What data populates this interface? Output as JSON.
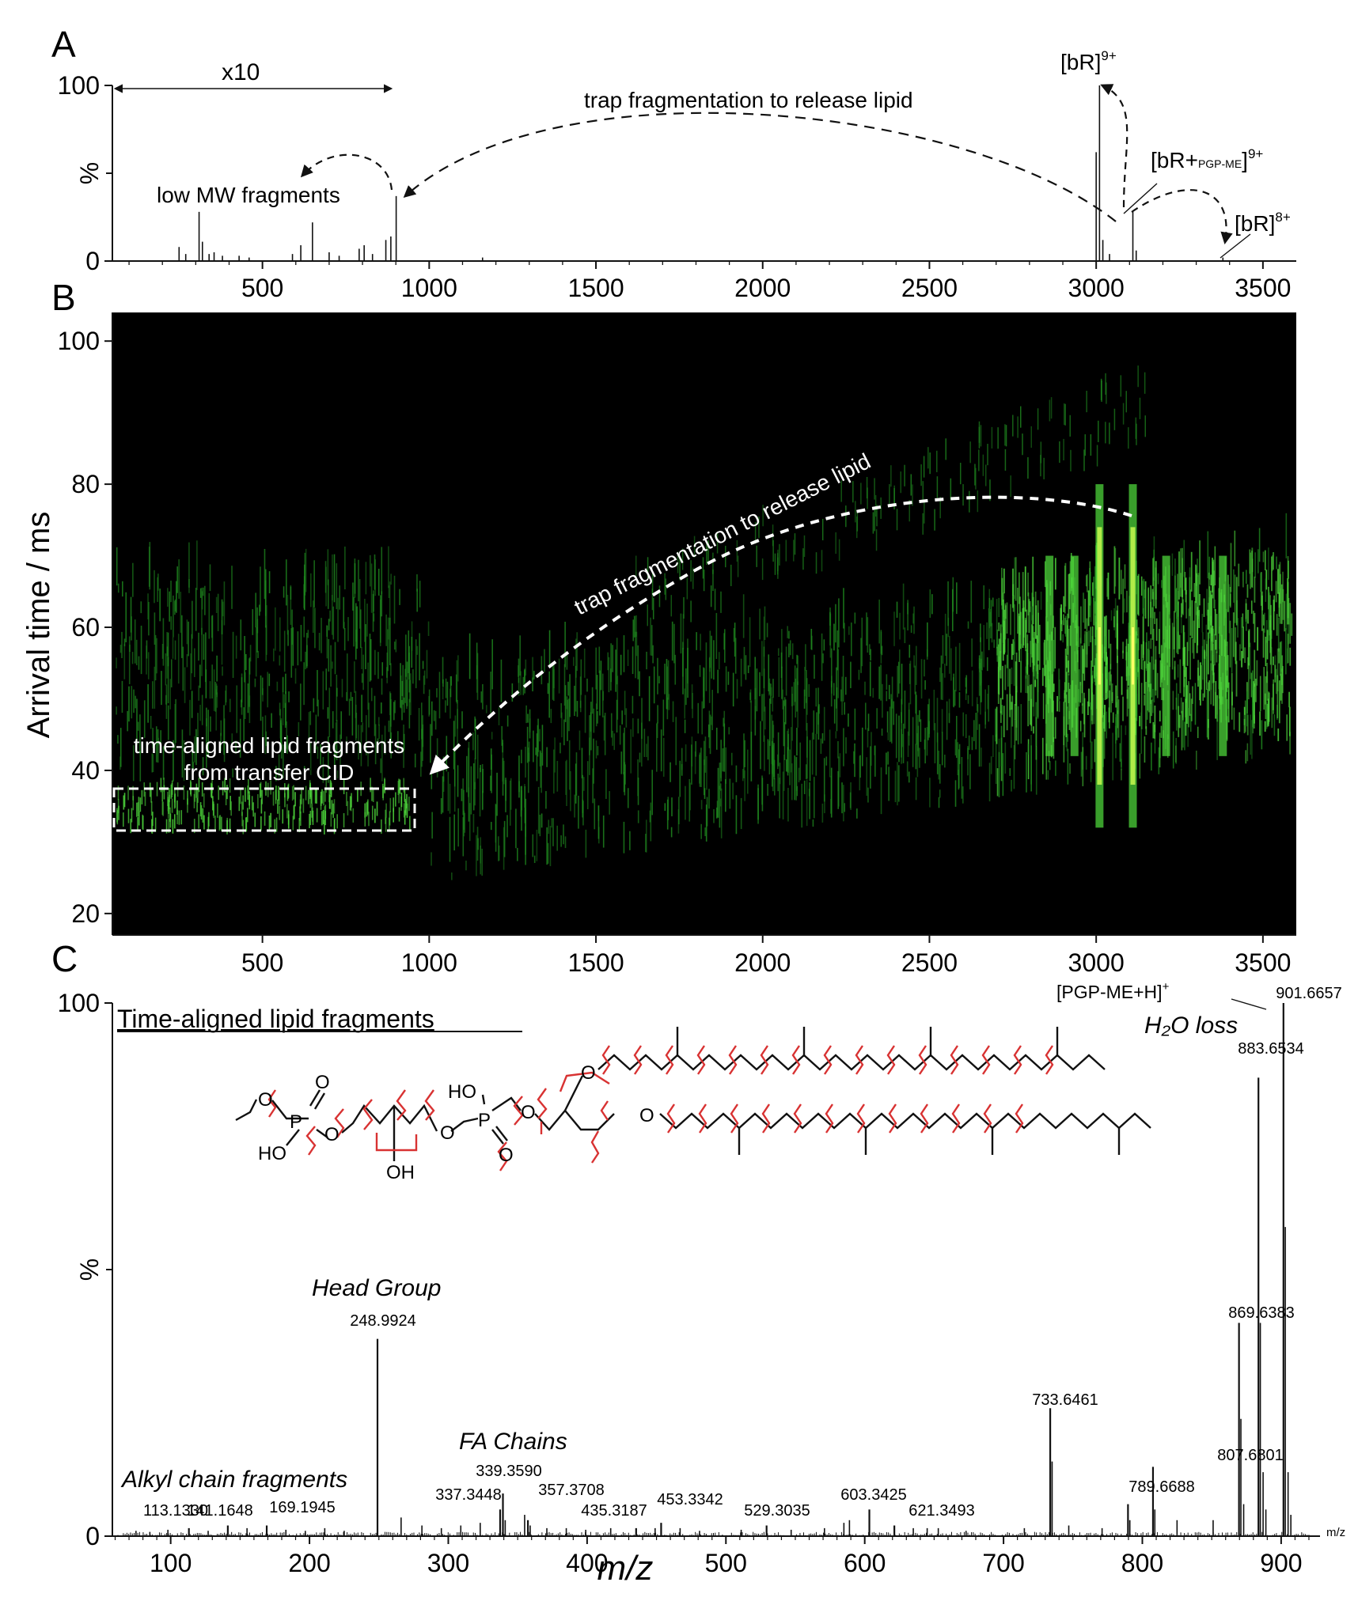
{
  "chart_data": [
    {
      "panel": "A",
      "type": "line",
      "x_ticks": [
        500,
        1000,
        1500,
        2000,
        2500,
        3000,
        3500
      ],
      "y_ticks": [
        0,
        100
      ],
      "y_mid_label": "%",
      "xlim": [
        50,
        3600
      ],
      "ylim": [
        0,
        100
      ],
      "zoom_label": "x10",
      "zoom_range": [
        50,
        900
      ],
      "peaks": [
        {
          "x": 250,
          "y": 8
        },
        {
          "x": 270,
          "y": 4
        },
        {
          "x": 310,
          "y": 28
        },
        {
          "x": 320,
          "y": 11
        },
        {
          "x": 340,
          "y": 4
        },
        {
          "x": 355,
          "y": 5
        },
        {
          "x": 380,
          "y": 3
        },
        {
          "x": 430,
          "y": 3
        },
        {
          "x": 460,
          "y": 2
        },
        {
          "x": 590,
          "y": 4
        },
        {
          "x": 615,
          "y": 9
        },
        {
          "x": 650,
          "y": 22
        },
        {
          "x": 700,
          "y": 5
        },
        {
          "x": 730,
          "y": 3
        },
        {
          "x": 790,
          "y": 7
        },
        {
          "x": 805,
          "y": 9
        },
        {
          "x": 830,
          "y": 4
        },
        {
          "x": 870,
          "y": 12
        },
        {
          "x": 885,
          "y": 14
        },
        {
          "x": 901,
          "y": 37
        },
        {
          "x": 1160,
          "y": 2
        },
        {
          "x": 3000,
          "y": 62
        },
        {
          "x": 3010,
          "y": 100
        },
        {
          "x": 3020,
          "y": 12
        },
        {
          "x": 3040,
          "y": 4
        },
        {
          "x": 3110,
          "y": 28
        },
        {
          "x": 3120,
          "y": 6
        },
        {
          "x": 3380,
          "y": 2
        }
      ],
      "annotations": {
        "trap": "trap fragmentation to release lipid",
        "low_mw": "low MW fragments",
        "bR9_base": "[bR]",
        "bR9_sup": "9+",
        "bRlipid_base": "[bR+",
        "bRlipid_sub": "PGP-ME",
        "bRlipid_close": "]",
        "bRlipid_sup": "9+",
        "bR8_base": "[bR]",
        "bR8_sup": "8+"
      }
    },
    {
      "panel": "B",
      "type": "heatmap",
      "x_ticks": [
        500,
        1000,
        1500,
        2000,
        2500,
        3000,
        3500
      ],
      "y_ticks": [
        20,
        40,
        60,
        80,
        100
      ],
      "xlim": [
        50,
        3600
      ],
      "ylim": [
        17,
        104
      ],
      "ylabel": "Arrival time / ms",
      "colors": [
        "#000000",
        "#1f8a1f",
        "#4cd33a",
        "#b7f04a",
        "#ffff66"
      ],
      "annotations": {
        "trap": "trap fragmentation to release lipid",
        "box_line1": "time-aligned lipid fragments",
        "box_line2": "from transfer CID"
      }
    },
    {
      "panel": "C",
      "type": "bar",
      "title": "Time-aligned lipid fragments",
      "xlabel": "m/z",
      "x_unit_label": "m/z",
      "y_mid_label": "%",
      "x_ticks": [
        100,
        200,
        300,
        400,
        500,
        600,
        700,
        800,
        900
      ],
      "y_ticks": [
        0,
        100
      ],
      "xlim": [
        58,
        928
      ],
      "ylim": [
        0,
        100
      ],
      "labeled_peaks": [
        {
          "x": 113.133,
          "y": 1.5,
          "label": "113.1330"
        },
        {
          "x": 141.1648,
          "y": 2,
          "label": "141.1648"
        },
        {
          "x": 169.1945,
          "y": 2,
          "label": "169.1945"
        },
        {
          "x": 248.9924,
          "y": 37,
          "label": "248.9924"
        },
        {
          "x": 337.3448,
          "y": 5,
          "label": "337.3448"
        },
        {
          "x": 339.359,
          "y": 8,
          "label": "339.3590"
        },
        {
          "x": 357.3708,
          "y": 3,
          "label": "357.3708"
        },
        {
          "x": 435.3187,
          "y": 1.5,
          "label": "435.3187"
        },
        {
          "x": 453.3342,
          "y": 2.5,
          "label": "453.3342"
        },
        {
          "x": 529.3035,
          "y": 2,
          "label": "529.3035"
        },
        {
          "x": 603.3425,
          "y": 5,
          "label": "603.3425"
        },
        {
          "x": 621.3493,
          "y": 2,
          "label": "621.3493"
        },
        {
          "x": 733.6461,
          "y": 24,
          "label": "733.6461"
        },
        {
          "x": 789.6688,
          "y": 6,
          "label": "789.6688"
        },
        {
          "x": 807.6801,
          "y": 13,
          "label": "807.6801"
        },
        {
          "x": 869.6383,
          "y": 40,
          "label": "869.6383"
        },
        {
          "x": 883.6534,
          "y": 86,
          "label": "883.6534"
        },
        {
          "x": 901.6657,
          "y": 100,
          "label": "901.6657"
        }
      ],
      "minor_peaks": [
        {
          "x": 75,
          "y": 1
        },
        {
          "x": 85,
          "y": 0.8
        },
        {
          "x": 98,
          "y": 1.2
        },
        {
          "x": 127,
          "y": 1
        },
        {
          "x": 155,
          "y": 1.5
        },
        {
          "x": 183,
          "y": 1.2
        },
        {
          "x": 197,
          "y": 1
        },
        {
          "x": 211,
          "y": 1.5
        },
        {
          "x": 225,
          "y": 1
        },
        {
          "x": 266,
          "y": 3.5
        },
        {
          "x": 281,
          "y": 2
        },
        {
          "x": 295,
          "y": 1.5
        },
        {
          "x": 309,
          "y": 2
        },
        {
          "x": 323,
          "y": 2.5
        },
        {
          "x": 341,
          "y": 3
        },
        {
          "x": 355,
          "y": 4
        },
        {
          "x": 359,
          "y": 2
        },
        {
          "x": 371,
          "y": 1.5
        },
        {
          "x": 385,
          "y": 1.5
        },
        {
          "x": 399,
          "y": 1.2
        },
        {
          "x": 417,
          "y": 1.5
        },
        {
          "x": 449,
          "y": 1.5
        },
        {
          "x": 467,
          "y": 1.5
        },
        {
          "x": 481,
          "y": 1
        },
        {
          "x": 511,
          "y": 1.2
        },
        {
          "x": 547,
          "y": 1.2
        },
        {
          "x": 571,
          "y": 1.5
        },
        {
          "x": 585,
          "y": 2.5
        },
        {
          "x": 589,
          "y": 3
        },
        {
          "x": 635,
          "y": 1.5
        },
        {
          "x": 645,
          "y": 1.5
        },
        {
          "x": 653,
          "y": 1.5
        },
        {
          "x": 673,
          "y": 1
        },
        {
          "x": 715,
          "y": 1.5
        },
        {
          "x": 735,
          "y": 14
        },
        {
          "x": 747,
          "y": 2
        },
        {
          "x": 771,
          "y": 1.5
        },
        {
          "x": 791,
          "y": 3
        },
        {
          "x": 809,
          "y": 5
        },
        {
          "x": 825,
          "y": 3
        },
        {
          "x": 851,
          "y": 3
        },
        {
          "x": 871,
          "y": 22
        },
        {
          "x": 873,
          "y": 6
        },
        {
          "x": 885,
          "y": 40
        },
        {
          "x": 887,
          "y": 12
        },
        {
          "x": 889,
          "y": 5
        },
        {
          "x": 903,
          "y": 58
        },
        {
          "x": 905,
          "y": 12
        },
        {
          "x": 907,
          "y": 4
        }
      ],
      "annotations": {
        "precursor_label_base": "[PGP-ME+H]",
        "precursor_label_sup": "+",
        "h2o_loss": "H₂O loss",
        "head_group": "Head Group",
        "fa_chains": "FA Chains",
        "alkyl": "Alkyl chain fragments"
      },
      "structure_labels": {
        "o": "O",
        "p": "P",
        "ho": "HO",
        "oh": "OH"
      }
    }
  ],
  "panel_letters": [
    "A",
    "B",
    "C"
  ]
}
